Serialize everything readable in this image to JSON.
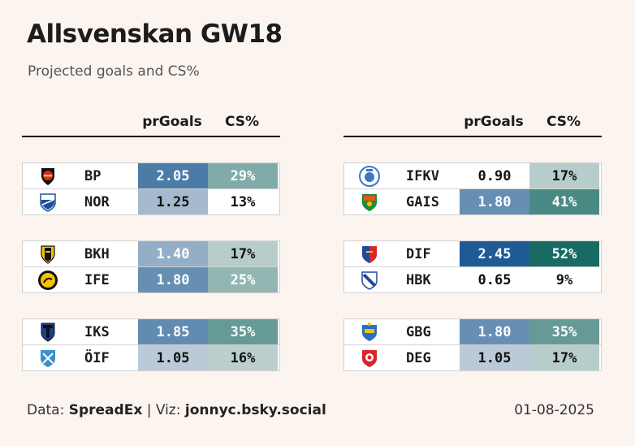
{
  "title": "Allsvenskan GW18",
  "subtitle": "Projected goals and CS%",
  "footer": {
    "data_label": "Data:",
    "data_source": "SpreadEx",
    "separator": "|",
    "viz_label": "Viz:",
    "viz_author": "jonnyc.bsky.social",
    "date": "01-08-2025"
  },
  "colors": {
    "background": "#fcf4ef",
    "goals_scale": [
      "#eeeeee",
      "#1e5b94"
    ],
    "cs_scale": [
      "#eeeeee",
      "#176b64"
    ]
  },
  "chart_data": {
    "type": "table",
    "columns": [
      "prGoals",
      "CS%"
    ],
    "panels": [
      {
        "matches": [
          {
            "teams": [
              {
                "code": "BP",
                "logo": "bp-crest-icon",
                "pr_goals": "2.05",
                "cs": "29%"
              },
              {
                "code": "NOR",
                "logo": "nor-crest-icon",
                "pr_goals": "1.25",
                "cs": "13%"
              }
            ]
          },
          {
            "teams": [
              {
                "code": "BKH",
                "logo": "bkh-crest-icon",
                "pr_goals": "1.40",
                "cs": "17%"
              },
              {
                "code": "IFE",
                "logo": "ife-crest-icon",
                "pr_goals": "1.80",
                "cs": "25%"
              }
            ]
          },
          {
            "teams": [
              {
                "code": "IKS",
                "logo": "iks-crest-icon",
                "pr_goals": "1.85",
                "cs": "35%"
              },
              {
                "code": "ÖIF",
                "logo": "oif-crest-icon",
                "pr_goals": "1.05",
                "cs": "16%"
              }
            ]
          }
        ]
      },
      {
        "matches": [
          {
            "teams": [
              {
                "code": "IFKV",
                "logo": "ifkv-crest-icon",
                "pr_goals": "0.90",
                "cs": "17%"
              },
              {
                "code": "GAIS",
                "logo": "gais-crest-icon",
                "pr_goals": "1.80",
                "cs": "41%"
              }
            ]
          },
          {
            "teams": [
              {
                "code": "DIF",
                "logo": "dif-crest-icon",
                "pr_goals": "2.45",
                "cs": "52%"
              },
              {
                "code": "HBK",
                "logo": "hbk-crest-icon",
                "pr_goals": "0.65",
                "cs": "9%"
              }
            ]
          },
          {
            "teams": [
              {
                "code": "GBG",
                "logo": "gbg-crest-icon",
                "pr_goals": "1.80",
                "cs": "35%"
              },
              {
                "code": "DEG",
                "logo": "deg-crest-icon",
                "pr_goals": "1.05",
                "cs": "17%"
              }
            ]
          }
        ]
      }
    ]
  }
}
